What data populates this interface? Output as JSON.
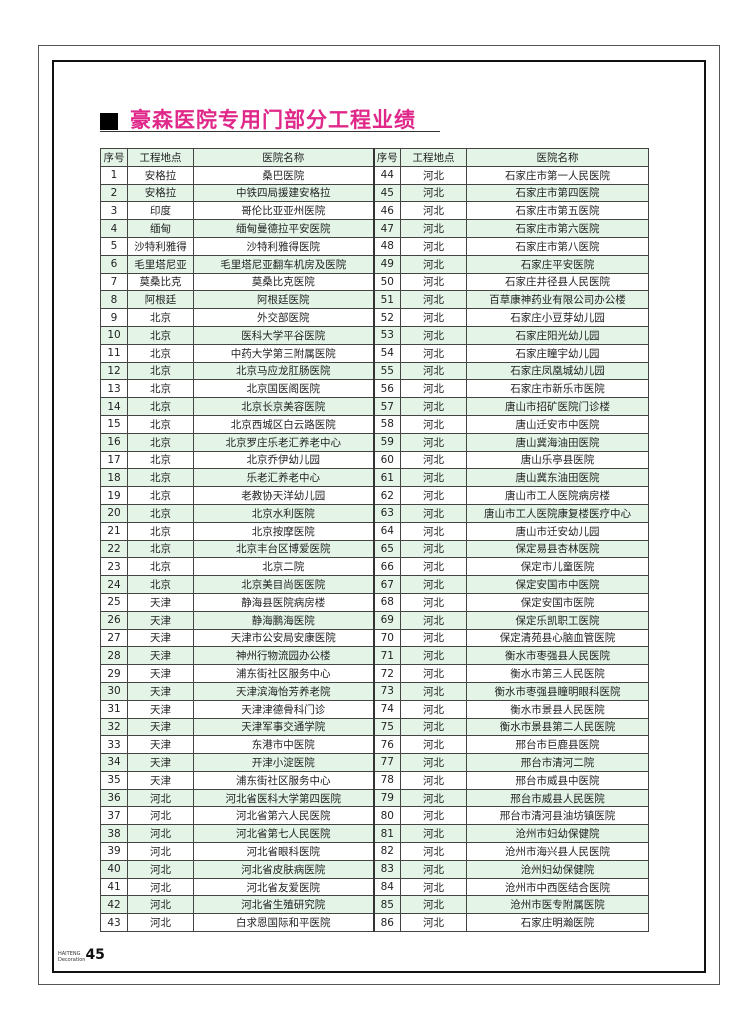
{
  "title": "豪森医院专用门部分工程业绩",
  "headers": [
    "序号",
    "工程地点",
    "医院名称",
    "序号",
    "工程地点",
    "医院名称"
  ],
  "rows": [
    [
      "1",
      "安格拉",
      "桑巴医院",
      "44",
      "河北",
      "石家庄市第一人民医院"
    ],
    [
      "2",
      "安格拉",
      "中铁四局援建安格拉",
      "45",
      "河北",
      "石家庄市第四医院"
    ],
    [
      "3",
      "印度",
      "哥伦比亚亚州医院",
      "46",
      "河北",
      "石家庄市第五医院"
    ],
    [
      "4",
      "缅甸",
      "缅甸曼德拉平安医院",
      "47",
      "河北",
      "石家庄市第六医院"
    ],
    [
      "5",
      "沙特利雅得",
      "沙特利雅得医院",
      "48",
      "河北",
      "石家庄市第八医院"
    ],
    [
      "6",
      "毛里塔尼亚",
      "毛里塔尼亚翻车机房及医院",
      "49",
      "河北",
      "石家庄平安医院"
    ],
    [
      "7",
      "莫桑比克",
      "莫桑比克医院",
      "50",
      "河北",
      "石家庄井径县人民医院"
    ],
    [
      "8",
      "阿根廷",
      "阿根廷医院",
      "51",
      "河北",
      "百草康神药业有限公司办公楼"
    ],
    [
      "9",
      "北京",
      "外交部医院",
      "52",
      "河北",
      "石家庄小豆芽幼儿园"
    ],
    [
      "10",
      "北京",
      "医科大学平谷医院",
      "53",
      "河北",
      "石家庄阳光幼儿园"
    ],
    [
      "11",
      "北京",
      "中药大学第三附属医院",
      "54",
      "河北",
      "石家庄瞳宇幼儿园"
    ],
    [
      "12",
      "北京",
      "北京马应龙肛肠医院",
      "55",
      "河北",
      "石家庄凤凰城幼儿园"
    ],
    [
      "13",
      "北京",
      "北京国医阁医院",
      "56",
      "河北",
      "石家庄市新乐市医院"
    ],
    [
      "14",
      "北京",
      "北京长京美容医院",
      "57",
      "河北",
      "唐山市招矿医院门诊楼"
    ],
    [
      "15",
      "北京",
      "北京西城区白云路医院",
      "58",
      "河北",
      "唐山迁安市中医院"
    ],
    [
      "16",
      "北京",
      "北京罗庄乐老汇养老中心",
      "59",
      "河北",
      "唐山冀海油田医院"
    ],
    [
      "17",
      "北京",
      "北京乔伊幼儿园",
      "60",
      "河北",
      "唐山乐亭县医院"
    ],
    [
      "18",
      "北京",
      "乐老汇养老中心",
      "61",
      "河北",
      "唐山冀东油田医院"
    ],
    [
      "19",
      "北京",
      "老教协天洋幼儿园",
      "62",
      "河北",
      "唐山市工人医院病房楼"
    ],
    [
      "20",
      "北京",
      "北京水利医院",
      "63",
      "河北",
      "唐山市工人医院康复楼医疗中心"
    ],
    [
      "21",
      "北京",
      "北京按摩医院",
      "64",
      "河北",
      "唐山市迁安幼儿园"
    ],
    [
      "22",
      "北京",
      "北京丰台区博爱医院",
      "65",
      "河北",
      "保定易县杏林医院"
    ],
    [
      "23",
      "北京",
      "北京二院",
      "66",
      "河北",
      "保定市儿童医院"
    ],
    [
      "24",
      "北京",
      "北京美目尚医医院",
      "67",
      "河北",
      "保定安国市中医院"
    ],
    [
      "25",
      "天津",
      "静海县医院病房楼",
      "68",
      "河北",
      "保定安国市医院"
    ],
    [
      "26",
      "天津",
      "静海鹏海医院",
      "69",
      "河北",
      "保定乐凯职工医院"
    ],
    [
      "27",
      "天津",
      "天津市公安局安康医院",
      "70",
      "河北",
      "保定清苑县心脑血管医院"
    ],
    [
      "28",
      "天津",
      "神州行物流园办公楼",
      "71",
      "河北",
      "衡水市枣强县人民医院"
    ],
    [
      "29",
      "天津",
      "浦东街社区服务中心",
      "72",
      "河北",
      "衡水市第三人民医院"
    ],
    [
      "30",
      "天津",
      "天津滨海怡芳养老院",
      "73",
      "河北",
      "衡水市枣强县瞳明眼科医院"
    ],
    [
      "31",
      "天津",
      "天津津德骨科门诊",
      "74",
      "河北",
      "衡水市景县人民医院"
    ],
    [
      "32",
      "天津",
      "天津军事交通学院",
      "75",
      "河北",
      "衡水市景县第二人民医院"
    ],
    [
      "33",
      "天津",
      "东港市中医院",
      "76",
      "河北",
      "邢台市巨鹿县医院"
    ],
    [
      "34",
      "天津",
      "开津小淀医院",
      "77",
      "河北",
      "邢台市清河二院"
    ],
    [
      "35",
      "天津",
      "浦东街社区服务中心",
      "78",
      "河北",
      "邢台市威县中医院"
    ],
    [
      "36",
      "河北",
      "河北省医科大学第四医院",
      "79",
      "河北",
      "邢台市威县人民医院"
    ],
    [
      "37",
      "河北",
      "河北省第六人民医院",
      "80",
      "河北",
      "邢台市清河县油坊镇医院"
    ],
    [
      "38",
      "河北",
      "河北省第七人民医院",
      "81",
      "河北",
      "沧州市妇幼保健院"
    ],
    [
      "39",
      "河北",
      "河北省眼科医院",
      "82",
      "河北",
      "沧州市海兴县人民医院"
    ],
    [
      "40",
      "河北",
      "河北省皮肤病医院",
      "83",
      "河北",
      "沧州妇幼保健院"
    ],
    [
      "41",
      "河北",
      "河北省友爱医院",
      "84",
      "河北",
      "沧州市中西医结合医院"
    ],
    [
      "42",
      "河北",
      "河北省生殖研究院",
      "85",
      "河北",
      "沧州市医专附属医院"
    ],
    [
      "43",
      "河北",
      "白求恩国际和平医院",
      "86",
      "河北",
      "石家庄明瀚医院"
    ]
  ],
  "footer": {
    "brand_line1": "HAITENG",
    "brand_line2": "Decoration",
    "page_number": "45"
  },
  "colors": {
    "title": "#e0288a",
    "row_alt": "#e4f5e8"
  }
}
